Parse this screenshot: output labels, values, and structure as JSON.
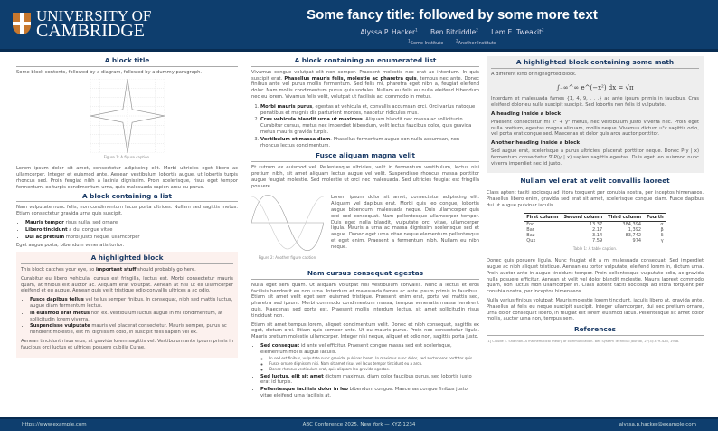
{
  "header": {
    "logo_line1": "UNIVERSITY OF",
    "logo_line2": "CAMBRIDGE",
    "title": "Some fancy title: followed by some more text",
    "authors": [
      "Alyssa P. Hacker",
      "Ben Bitdiddle",
      "Lem E. Tweakit"
    ],
    "author_marks": [
      "1",
      "2",
      "2"
    ],
    "institutions": [
      "Some Institute",
      "Another Institute"
    ],
    "institution_marks": [
      "1",
      "2"
    ]
  },
  "col1": {
    "b1": {
      "title": "A block title",
      "intro": "Some block contents, followed by a diagram, followed by a dummy paragraph.",
      "caption": "Figure 1: A figure caption.",
      "para": "Lorem ipsum dolor sit amet, consectetur adipiscing elit. Morbi ultricies eget libero ac ullamcorper. Integer et euismod ante. Aenean vestibulum lobortis augue, ut lobortis turpis rhoncus sed. Proin feugiat nibh a lacinia dignissim. Proin scelerisque, risus eget tempor fermentum, ex turpis condimentum urna, quis malesuada sapien arcu eu purus."
    },
    "b2": {
      "title": "A block containing a list",
      "intro": "Nam vulputate nunc felis, non condimentum lacus porta ultrices. Nullam sed sagittis metus. Etiam consectetur gravida urna quis suscipit.",
      "items": [
        {
          "b": "Mauris tempor",
          "t": " risus nulla, sed ornare"
        },
        {
          "b": "Libero tincidunt",
          "t": " a dui congue vitae"
        },
        {
          "b": "Dui ac pretium",
          "t": " morbi justo neque, ullamcorper"
        }
      ],
      "outro": "Eget augue porta, bibendum venenatis tortor."
    },
    "b3": {
      "title": "A highlighted block",
      "p1a": "This block catches your eye, so ",
      "p1b": "important stuff",
      "p1c": " should probably go here.",
      "p2": "Curabitur eu libero vehicula, cursus est fringilla, luctus est. Morbi consectetur mauris quam, at finibus elit auctor ac. Aliquam erat volutpat. Aenean at nisl ut ex ullamcorper eleifend et eu augue. Aenean quis velit tristique odio convallis ultrices a ac odio.",
      "items": [
        {
          "b": "Fusce dapibus tellus",
          "t": " vel tellus semper finibus. In consequat, nibh sed mattis luctus, augue diam fermentum lectus."
        },
        {
          "b": "In euismod erat metus",
          "t": " non ex. Vestibulum luctus augue in mi condimentum, at sollicitudin lorem viverra."
        },
        {
          "b": "Suspendisse vulputate",
          "t": " mauris vel placerat consectetur. Mauris semper, purus ac hendrerit molestie, elit mi dignissim odio, in suscipit felis sapien vel ex."
        }
      ],
      "p3": "Aenean tincidunt risus eros, at gravida lorem sagittis vel. Vestibulum ante ipsum primis in faucibus orci luctus et ultrices posuere cubilia Curae."
    }
  },
  "col2": {
    "b1": {
      "title": "A block containing an enumerated list",
      "p1a": "Vivamus congue volutpat elit non semper. Praesent molestie nec erat ac interdum. In quis suscipit erat. ",
      "p1b": "Phasellus mauris felis, molestie ac pharetra quis",
      "p1c": ", tempus nec ante. Donec finibus ante vel purus mollis fermentum. Sed felis mi, pharetra eget nibh a, feugiat eleifend dolor. Nam mollis condimentum purus quis sodales. Nullam eu felis eu nulla eleifend bibendum nec eu lorem. Vivamus felis velit, volutpat ut facilisis ac, commodo in metus.",
      "items": [
        {
          "b": "Morbi mauris purus",
          "t": ", egestas at vehicula et, convallis accumsan orci. Orci varius natoque penatibus et magnis dis parturient montes, nascetur ridiculus mus."
        },
        {
          "b": "Cras vehicula blandit urna ut maximus",
          "t": ". Aliquam blandit nec massa ac sollicitudin. Curabitur cursus, metus nec imperdiet bibendum, velit lectus faucibus dolor, quis gravida metus mauris gravida turpis."
        },
        {
          "b": "Vestibulum et massa diam",
          "t": ". Phasellus fermentum augue non nulla accumsan, non rhoncus lectus condimentum."
        }
      ]
    },
    "b2": {
      "title": "Fusce aliquam magna velit",
      "p1": "Et rutrum ex euismod vel. Pellentesque ultricies, velit in fermentum vestibulum, lectus nisi pretium nibh, sit amet aliquam lectus augue vel velit. Suspendisse rhoncus massa porttitor augue feugiat molestie. Sed molestie ut orci nec malesuada. Sed ultricies feugiat est fringilla posuere.",
      "caption": "Figure 2: Another figure caption.",
      "side": "Lorem ipsum dolor sit amet, consectetur adipiscing elit. Aliquam vel dapibus erat. Morbi quis leo congue, lobortis augue bibendum, malesuada neque. Duis ullamcorper quis orci sed consequat. Nam pellentesque ullamcorper tempor. Duis eget nulla blandit, vulputate orci vitae, ullamcorper ligula. Mauris a urna ac massa dignissim scelerisque sed et augue. Donec eget urna vitae neque elementum pellentesque et eget enim. Praesent a fermentum nibh. Nullam eu nibh neque."
    },
    "b3": {
      "title": "Nam cursus consequat egestas",
      "p1": "Nulla eget sem quam. Ut aliquam volutpat nisi vestibulum convallis. Nunc a lectus et eros facilisis hendrerit eu non urna. Interdum et malesuada fames ac ante ipsum primis in faucibus. Etiam sit amet velit eget sem euismod tristique. Praesent enim erat, porta vel mattis sed, pharetra sed ipsum. Morbi commodo condimentum massa, tempus venenatis massa hendrerit quis. Maecenas sed porta est. Praesent mollis interdum lectus, sit amet sollicitudin risus tincidunt non.",
      "p2": "Etiam sit amet tempus lorem, aliquet condimentum velit. Donec et nibh consequat, sagittis ex eget, dictum orci. Etiam quis semper ante. Ut eu mauris purus. Proin nec consectetur ligula. Mauris pretium molestie ullamcorper. Integer nisi neque, aliquet et odio non, sagittis porta justo.",
      "items": [
        {
          "b": "Sed consequat",
          "t": " id ante vel efficitur. Praesent congue massa sed est scelerisque, elementum mollis augue iaculis."
        },
        {
          "b": "Sed luctus, elit sit amet",
          "t": " dictum maximus, diam dolor faucibus purus, sed lobortis justo erat id turpis."
        },
        {
          "b": "Pellentesque facilisis dolor in leo",
          "t": " bibendum congue. Maecenas congue finibus justo, vitae eleifend urna facilisis at."
        }
      ],
      "subitems": [
        "In sed est finibus, vulputate nunc gravida, pulvinar lorem. In maximus nunc dolor, sed auctor eros porttitor quis.",
        "Fusce ornare dignissim nisi. Nam sit amet risus vel lacus tempor tincidunt eu a arcu.",
        "Donec rhoncus vestibulum erat, quis aliquam leo gravida egestas."
      ]
    }
  },
  "col3": {
    "b1": {
      "title": "A highlighted block containing some math",
      "intro": "A different kind of highlighted block.",
      "math": "∫₋∞^∞ e^(−x²) dx = √π",
      "p1": "Interdum et malesuada fames {1, 4, 9, . . .} ac ante ipsum primis in faucibus. Cras eleifend dolor eu nulla suscipit suscipit. Sed lobortis non felis id vulputate.",
      "h1": "A heading inside a block",
      "p2": "Praesent consectetur mi x² + y² metus, nec vestibulum justo viverra nec. Proin eget nulla pretium, egestas magna aliquam, mollis neque. Vivamus dictum uᵀv sagittis odio, vel porta erat congue sed. Maecenas ut dolor quis arcu auctor porttitor.",
      "h2": "Another heading inside a block",
      "p3": "Sed augue erat, scelerisque a purus ultricies, placerat porttitor neque. Donec P(y | x) fermentum consectetur ∇ₓP(y | x) sapien sagittis egestas. Duis eget leo euismod nunc viverra imperdiet nec id justo."
    },
    "b2": {
      "title": "Nullam vel erat at velit convallis laoreet",
      "p1": "Class aptent taciti sociosqu ad litora torquent per conubia nostra, per inceptos himenaeos. Phasellus libero enim, gravida sed erat sit amet, scelerisque congue diam. Fusce dapibus dui ut augue pulvinar iaculis.",
      "table": {
        "headers": [
          "First column",
          "Second column",
          "Third column",
          "Fourth"
        ],
        "rows": [
          [
            "Foo",
            "13.37",
            "384,394",
            "α"
          ],
          [
            "Bar",
            "2.17",
            "1,392",
            "β"
          ],
          [
            "Baz",
            "3.14",
            "83,742",
            "δ"
          ],
          [
            "Qux",
            "7.59",
            "974",
            "γ"
          ]
        ]
      },
      "caption": "Table 1: A table caption.",
      "p2": "Donec quis posuere ligula. Nunc feugiat elit a mi malesuada consequat. Sed imperdiet augue ac nibh aliquet tristique. Aenean eu tortor vulputate, eleifend lorem in, dictum urna. Proin auctor ante in augue tincidunt tempor. Proin pellentesque vulputate odio, ac gravida nulla posuere efficitur. Aenean at velit vel dolor blandit molestie. Mauris laoreet commodo quam, non luctus nibh ullamcorper in. Class aptent taciti sociosqu ad litora torquent per conubia nostra, per inceptos himenaeos.",
      "p3": "Nulla varius finibus volutpat. Mauris molestie lorem tincidunt, iaculis libero at, gravida ante. Phasellus at felis eu neque suscipit suscipit. Integer ullamcorper, dui nec pretium ornare, urna dolor consequat libero, in feugiat elit lorem euismod lacus. Pellentesque sit amet dolor mollis, auctor urna non, tempus sem."
    },
    "b3": {
      "title": "References",
      "ref": "[1]  Claude E. Shannon. A mathematical theory of communication. Bell System Technical Journal, 27(3):379–423, 1948."
    }
  },
  "footer": {
    "left": "https://www.example.com",
    "center": "ABC Conference 2025, New York — XYZ-1234",
    "right": "alyssa.p.hacker@example.com"
  },
  "colors": {
    "header_bg": "#0e3e6e",
    "block_title": "#1b3b66",
    "highlight_bg": "#fcf1ee",
    "math_block_bg": "#eeeeee"
  }
}
